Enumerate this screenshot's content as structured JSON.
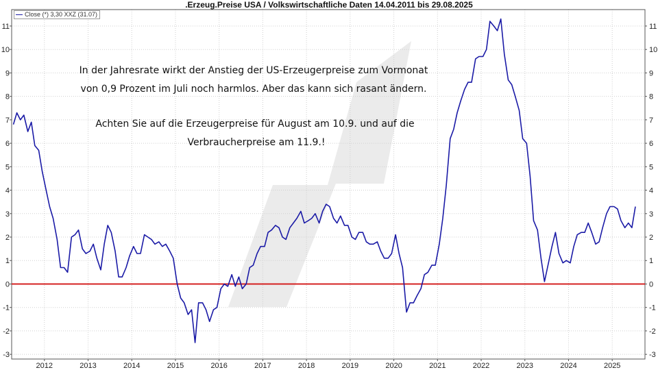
{
  "chart_data": {
    "type": "line",
    "title": ".Erzeug.Preise USA / Volkswirtschaftliche Daten 14.04.2011 bis 29.08.2025",
    "legend": "Close (*) 3,30 XXZ (31.07)",
    "legend_placement": "top-left",
    "xlabel": "",
    "ylabel": "",
    "xlim": [
      2011.25,
      2025.75
    ],
    "ylim": [
      -3.2,
      11.7
    ],
    "y_ticks": [
      -3,
      -2,
      -1,
      0,
      1,
      2,
      3,
      4,
      5,
      6,
      7,
      8,
      9,
      10,
      11
    ],
    "x_ticks": [
      2012,
      2013,
      2014,
      2015,
      2016,
      2017,
      2018,
      2019,
      2020,
      2021,
      2022,
      2023,
      2024,
      2025
    ],
    "grid": true,
    "zero_line": {
      "value": 0,
      "color": "#d42020"
    },
    "series": [
      {
        "color": "#1a1aa6",
        "points": [
          [
            2011.29,
            6.8
          ],
          [
            2011.37,
            7.3
          ],
          [
            2011.45,
            7.0
          ],
          [
            2011.53,
            7.2
          ],
          [
            2011.62,
            6.5
          ],
          [
            2011.7,
            6.9
          ],
          [
            2011.78,
            5.9
          ],
          [
            2011.87,
            5.7
          ],
          [
            2011.95,
            4.8
          ],
          [
            2012.04,
            4.0
          ],
          [
            2012.12,
            3.3
          ],
          [
            2012.2,
            2.8
          ],
          [
            2012.29,
            1.9
          ],
          [
            2012.37,
            0.7
          ],
          [
            2012.45,
            0.7
          ],
          [
            2012.53,
            0.5
          ],
          [
            2012.62,
            2.0
          ],
          [
            2012.7,
            2.1
          ],
          [
            2012.78,
            2.3
          ],
          [
            2012.87,
            1.5
          ],
          [
            2012.95,
            1.3
          ],
          [
            2013.04,
            1.4
          ],
          [
            2013.12,
            1.7
          ],
          [
            2013.2,
            1.1
          ],
          [
            2013.29,
            0.6
          ],
          [
            2013.37,
            1.7
          ],
          [
            2013.45,
            2.5
          ],
          [
            2013.53,
            2.2
          ],
          [
            2013.62,
            1.4
          ],
          [
            2013.7,
            0.3
          ],
          [
            2013.78,
            0.3
          ],
          [
            2013.87,
            0.7
          ],
          [
            2013.95,
            1.2
          ],
          [
            2014.04,
            1.6
          ],
          [
            2014.12,
            1.3
          ],
          [
            2014.2,
            1.3
          ],
          [
            2014.29,
            2.1
          ],
          [
            2014.37,
            2.0
          ],
          [
            2014.45,
            1.9
          ],
          [
            2014.53,
            1.7
          ],
          [
            2014.62,
            1.8
          ],
          [
            2014.7,
            1.6
          ],
          [
            2014.78,
            1.7
          ],
          [
            2014.87,
            1.4
          ],
          [
            2014.95,
            1.1
          ],
          [
            2015.04,
            0.0
          ],
          [
            2015.12,
            -0.6
          ],
          [
            2015.2,
            -0.8
          ],
          [
            2015.29,
            -1.3
          ],
          [
            2015.37,
            -1.1
          ],
          [
            2015.45,
            -2.5
          ],
          [
            2015.53,
            -0.8
          ],
          [
            2015.62,
            -0.8
          ],
          [
            2015.7,
            -1.1
          ],
          [
            2015.78,
            -1.6
          ],
          [
            2015.87,
            -1.1
          ],
          [
            2015.95,
            -1.0
          ],
          [
            2016.04,
            -0.2
          ],
          [
            2016.12,
            0.0
          ],
          [
            2016.2,
            -0.1
          ],
          [
            2016.29,
            0.4
          ],
          [
            2016.37,
            -0.1
          ],
          [
            2016.45,
            0.3
          ],
          [
            2016.53,
            -0.2
          ],
          [
            2016.62,
            0.0
          ],
          [
            2016.7,
            0.7
          ],
          [
            2016.78,
            0.8
          ],
          [
            2016.87,
            1.3
          ],
          [
            2016.95,
            1.6
          ],
          [
            2017.04,
            1.6
          ],
          [
            2017.12,
            2.2
          ],
          [
            2017.2,
            2.3
          ],
          [
            2017.29,
            2.5
          ],
          [
            2017.37,
            2.4
          ],
          [
            2017.45,
            2.0
          ],
          [
            2017.53,
            1.9
          ],
          [
            2017.62,
            2.4
          ],
          [
            2017.7,
            2.6
          ],
          [
            2017.78,
            2.8
          ],
          [
            2017.87,
            3.1
          ],
          [
            2017.95,
            2.6
          ],
          [
            2018.04,
            2.7
          ],
          [
            2018.12,
            2.8
          ],
          [
            2018.2,
            3.0
          ],
          [
            2018.29,
            2.6
          ],
          [
            2018.37,
            3.1
          ],
          [
            2018.45,
            3.4
          ],
          [
            2018.53,
            3.3
          ],
          [
            2018.62,
            2.8
          ],
          [
            2018.7,
            2.6
          ],
          [
            2018.78,
            2.9
          ],
          [
            2018.87,
            2.5
          ],
          [
            2018.95,
            2.5
          ],
          [
            2019.04,
            2.0
          ],
          [
            2019.12,
            1.9
          ],
          [
            2019.2,
            2.2
          ],
          [
            2019.29,
            2.2
          ],
          [
            2019.37,
            1.8
          ],
          [
            2019.45,
            1.7
          ],
          [
            2019.53,
            1.7
          ],
          [
            2019.62,
            1.8
          ],
          [
            2019.7,
            1.4
          ],
          [
            2019.78,
            1.1
          ],
          [
            2019.87,
            1.1
          ],
          [
            2019.95,
            1.3
          ],
          [
            2020.04,
            2.1
          ],
          [
            2020.12,
            1.3
          ],
          [
            2020.2,
            0.7
          ],
          [
            2020.29,
            -1.2
          ],
          [
            2020.37,
            -0.8
          ],
          [
            2020.45,
            -0.8
          ],
          [
            2020.53,
            -0.5
          ],
          [
            2020.62,
            -0.2
          ],
          [
            2020.7,
            0.4
          ],
          [
            2020.78,
            0.5
          ],
          [
            2020.87,
            0.8
          ],
          [
            2020.95,
            0.8
          ],
          [
            2021.04,
            1.7
          ],
          [
            2021.12,
            2.8
          ],
          [
            2021.2,
            4.2
          ],
          [
            2021.29,
            6.2
          ],
          [
            2021.37,
            6.6
          ],
          [
            2021.45,
            7.3
          ],
          [
            2021.53,
            7.8
          ],
          [
            2021.62,
            8.3
          ],
          [
            2021.7,
            8.6
          ],
          [
            2021.78,
            8.6
          ],
          [
            2021.87,
            9.6
          ],
          [
            2021.95,
            9.7
          ],
          [
            2022.04,
            9.7
          ],
          [
            2022.12,
            10.0
          ],
          [
            2022.2,
            11.2
          ],
          [
            2022.29,
            11.0
          ],
          [
            2022.37,
            10.8
          ],
          [
            2022.45,
            11.3
          ],
          [
            2022.53,
            9.8
          ],
          [
            2022.62,
            8.7
          ],
          [
            2022.7,
            8.5
          ],
          [
            2022.78,
            8.0
          ],
          [
            2022.87,
            7.4
          ],
          [
            2022.95,
            6.2
          ],
          [
            2023.04,
            6.0
          ],
          [
            2023.12,
            4.6
          ],
          [
            2023.2,
            2.7
          ],
          [
            2023.29,
            2.3
          ],
          [
            2023.37,
            1.1
          ],
          [
            2023.45,
            0.1
          ],
          [
            2023.53,
            0.8
          ],
          [
            2023.62,
            1.6
          ],
          [
            2023.7,
            2.2
          ],
          [
            2023.78,
            1.3
          ],
          [
            2023.87,
            0.9
          ],
          [
            2023.95,
            1.0
          ],
          [
            2024.04,
            0.9
          ],
          [
            2024.12,
            1.6
          ],
          [
            2024.2,
            2.1
          ],
          [
            2024.29,
            2.2
          ],
          [
            2024.37,
            2.2
          ],
          [
            2024.45,
            2.6
          ],
          [
            2024.53,
            2.2
          ],
          [
            2024.62,
            1.7
          ],
          [
            2024.7,
            1.8
          ],
          [
            2024.78,
            2.4
          ],
          [
            2024.87,
            3.0
          ],
          [
            2024.95,
            3.3
          ],
          [
            2025.04,
            3.3
          ],
          [
            2025.12,
            3.2
          ],
          [
            2025.2,
            2.7
          ],
          [
            2025.29,
            2.4
          ],
          [
            2025.37,
            2.6
          ],
          [
            2025.45,
            2.4
          ],
          [
            2025.53,
            3.3
          ]
        ]
      }
    ],
    "annotations": [
      "In der Jahresrate wirkt der Anstieg der US-Erzeugerpreise zum Vormonat",
      "von 0,9 Prozent im Juli noch harmlos. Aber das kann sich rasant ändern.",
      "Achten Sie auf die Erzeugerpreise für August am 10.9. und auf die",
      "Verbraucherpreise am 11.9.!"
    ]
  }
}
